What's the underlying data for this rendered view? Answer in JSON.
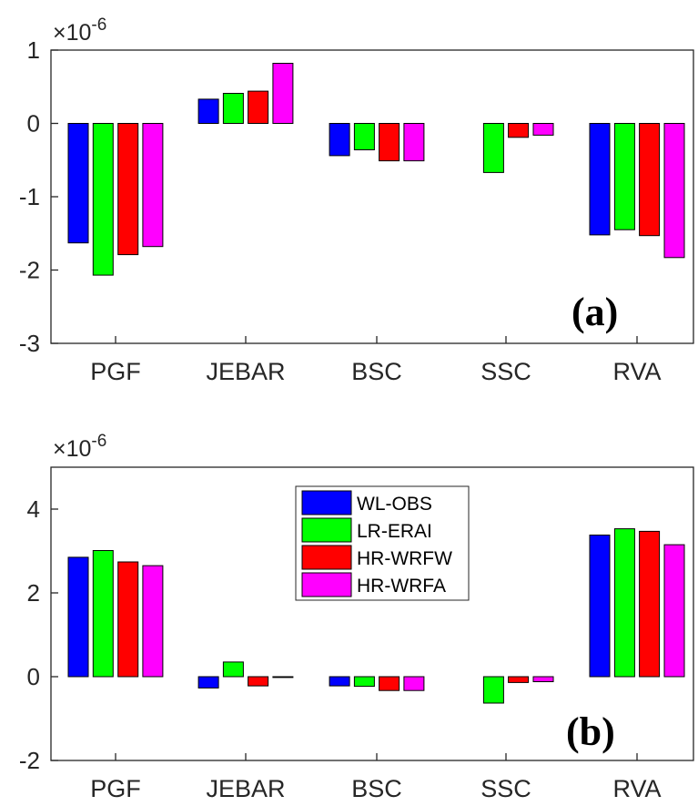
{
  "colors": {
    "WL-OBS": "#0000ff",
    "LR-ERAI": "#00ff00",
    "HR-WRFW": "#ff0000",
    "HR-WRFA": "#ff00ff"
  },
  "chart_data": [
    {
      "type": "bar",
      "panel_label": "(a)",
      "exponent_label": "×10^-6",
      "exponent_base": "×10",
      "exponent_power": "-6",
      "categories": [
        "PGF",
        "JEBAR",
        "BSC",
        "SSC",
        "RVA"
      ],
      "series": [
        {
          "name": "WL-OBS",
          "values": [
            -1.63,
            0.33,
            -0.44,
            0.0,
            -1.52
          ]
        },
        {
          "name": "LR-ERAI",
          "values": [
            -2.07,
            0.41,
            -0.36,
            -0.67,
            -1.45
          ]
        },
        {
          "name": "HR-WRFW",
          "values": [
            -1.79,
            0.44,
            -0.51,
            -0.19,
            -1.53
          ]
        },
        {
          "name": "HR-WRFA",
          "values": [
            -1.68,
            0.82,
            -0.51,
            -0.16,
            -1.83
          ]
        }
      ],
      "ylim": [
        -3,
        1
      ],
      "yticks": [
        "1",
        "0",
        "-1",
        "-2",
        "-3"
      ],
      "ytick_values": [
        1,
        0,
        -1,
        -2,
        -3
      ],
      "legend": "none"
    },
    {
      "type": "bar",
      "panel_label": "(b)",
      "exponent_label": "×10^-6",
      "exponent_base": "×10",
      "exponent_power": "-6",
      "categories": [
        "PGF",
        "JEBAR",
        "BSC",
        "SSC",
        "RVA"
      ],
      "series": [
        {
          "name": "WL-OBS",
          "values": [
            2.85,
            -0.27,
            -0.22,
            0.0,
            3.38
          ]
        },
        {
          "name": "LR-ERAI",
          "values": [
            3.01,
            0.35,
            -0.23,
            -0.63,
            3.53
          ]
        },
        {
          "name": "HR-WRFW",
          "values": [
            2.74,
            -0.22,
            -0.33,
            -0.14,
            3.47
          ]
        },
        {
          "name": "HR-WRFA",
          "values": [
            2.65,
            -0.02,
            -0.33,
            -0.12,
            3.15
          ]
        }
      ],
      "ylim": [
        -2,
        5
      ],
      "yticks": [
        "4",
        "2",
        "0",
        "-2"
      ],
      "ytick_values": [
        4,
        2,
        0,
        -2
      ],
      "legend": "inside-top-center",
      "legend_entries": [
        "WL-OBS",
        "LR-ERAI",
        "HR-WRFW",
        "HR-WRFA"
      ]
    }
  ]
}
